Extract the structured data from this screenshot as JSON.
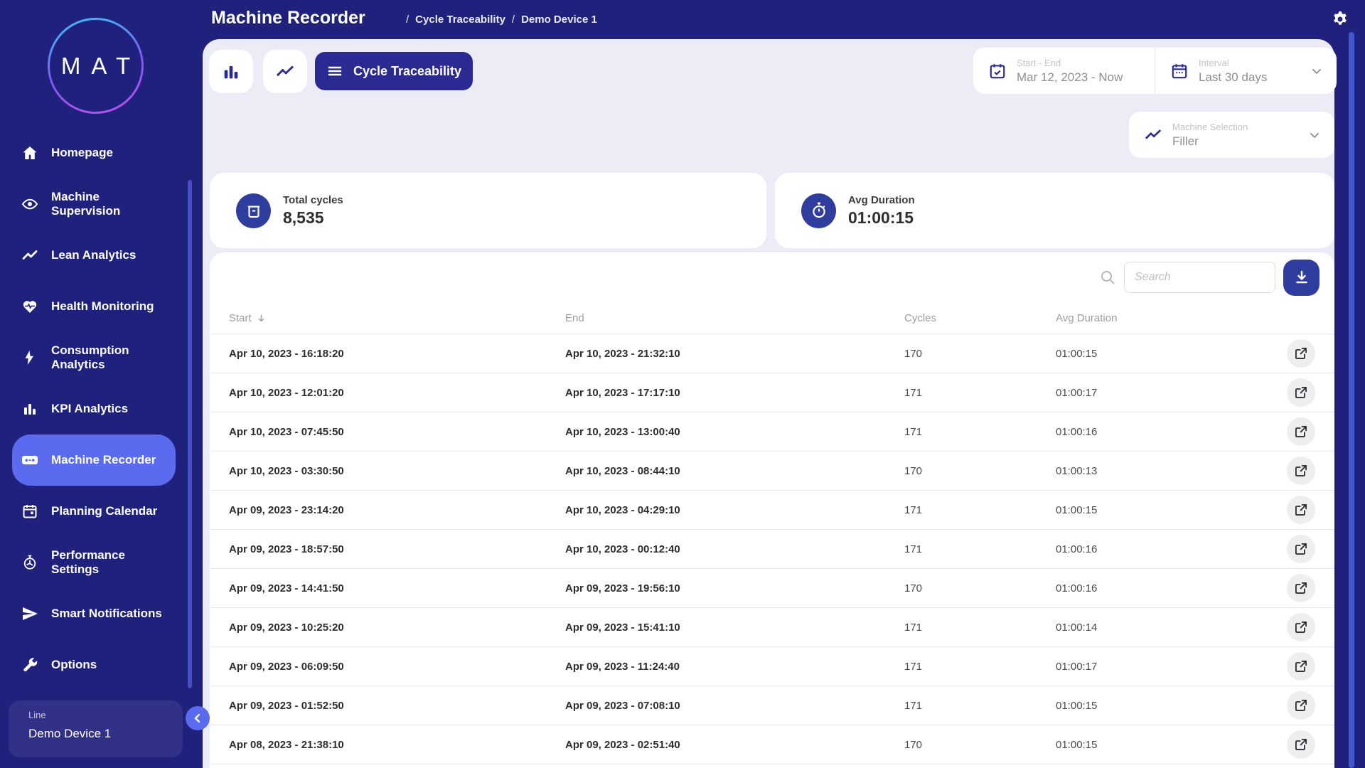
{
  "sidebar": {
    "logo": "MAT",
    "items": [
      {
        "label": "Homepage",
        "icon": "home",
        "active": false
      },
      {
        "label": "Machine Supervision",
        "icon": "eye",
        "active": false
      },
      {
        "label": "Lean Analytics",
        "icon": "trend",
        "active": false
      },
      {
        "label": "Health Monitoring",
        "icon": "heart-pulse",
        "active": false
      },
      {
        "label": "Consumption Analytics",
        "icon": "bolt",
        "active": false
      },
      {
        "label": "KPI Analytics",
        "icon": "bar-chart",
        "active": false
      },
      {
        "label": "Machine Recorder",
        "icon": "recorder",
        "active": true
      },
      {
        "label": "Planning Calendar",
        "icon": "calendar",
        "active": false
      },
      {
        "label": "Performance Settings",
        "icon": "gauge",
        "active": false
      },
      {
        "label": "Smart Notifications",
        "icon": "send",
        "active": false
      },
      {
        "label": "Options",
        "icon": "wrench",
        "active": false
      }
    ],
    "device_card": {
      "label": "Line",
      "value": "Demo Device 1"
    }
  },
  "header": {
    "title": "Machine Recorder",
    "breadcrumbs": [
      "Cycle Traceability",
      "Demo Device 1"
    ],
    "separator": "/"
  },
  "toolbar": {
    "view_button_label": "Cycle Traceability"
  },
  "filters": {
    "date_range": {
      "label": "Start - End",
      "value": "Mar 12, 2023 - Now"
    },
    "interval": {
      "label": "Interval",
      "value": "Last 30 days"
    },
    "machine": {
      "label": "Machine Selection",
      "value": "Filler"
    }
  },
  "stats": {
    "total_cycles": {
      "label": "Total cycles",
      "value": "8,535"
    },
    "avg_duration": {
      "label": "Avg Duration",
      "value": "01:00:15"
    }
  },
  "table": {
    "search_placeholder": "Search",
    "columns": [
      "Start",
      "End",
      "Cycles",
      "Avg Duration"
    ],
    "rows": [
      [
        "Apr 10, 2023 - 16:18:20",
        "Apr 10, 2023 - 21:32:10",
        "170",
        "01:00:15"
      ],
      [
        "Apr 10, 2023 - 12:01:20",
        "Apr 10, 2023 - 17:17:10",
        "171",
        "01:00:17"
      ],
      [
        "Apr 10, 2023 - 07:45:50",
        "Apr 10, 2023 - 13:00:40",
        "171",
        "01:00:16"
      ],
      [
        "Apr 10, 2023 - 03:30:50",
        "Apr 10, 2023 - 08:44:10",
        "170",
        "01:00:13"
      ],
      [
        "Apr 09, 2023 - 23:14:20",
        "Apr 10, 2023 - 04:29:10",
        "171",
        "01:00:15"
      ],
      [
        "Apr 09, 2023 - 18:57:50",
        "Apr 10, 2023 - 00:12:40",
        "171",
        "01:00:16"
      ],
      [
        "Apr 09, 2023 - 14:41:50",
        "Apr 09, 2023 - 19:56:10",
        "170",
        "01:00:16"
      ],
      [
        "Apr 09, 2023 - 10:25:20",
        "Apr 09, 2023 - 15:41:10",
        "171",
        "01:00:14"
      ],
      [
        "Apr 09, 2023 - 06:09:50",
        "Apr 09, 2023 - 11:24:40",
        "171",
        "01:00:17"
      ],
      [
        "Apr 09, 2023 - 01:52:50",
        "Apr 09, 2023 - 07:08:10",
        "171",
        "01:00:15"
      ],
      [
        "Apr 08, 2023 - 21:38:10",
        "Apr 09, 2023 - 02:51:40",
        "170",
        "01:00:15"
      ]
    ]
  },
  "colors": {
    "navy": "#20207D",
    "accent": "#5A6BEF",
    "button_navy": "#2A2A92",
    "icon_circle": "#2F3E9E",
    "panel_bg": "#EBECF5"
  }
}
